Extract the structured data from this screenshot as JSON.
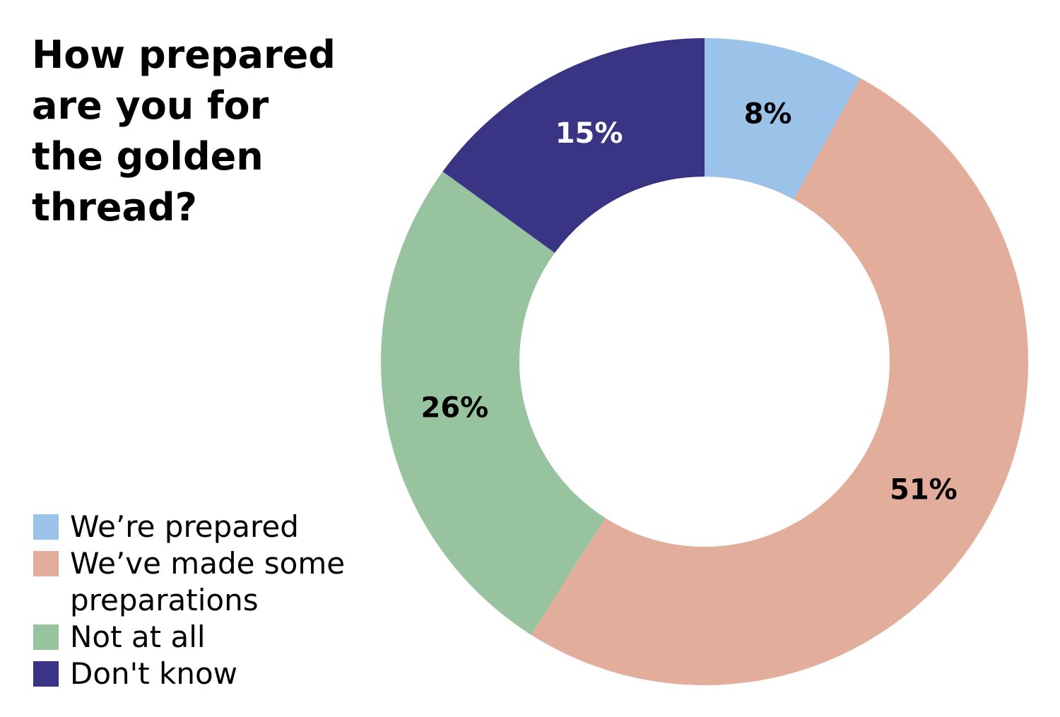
{
  "chart_data": {
    "type": "pie",
    "title": "How prepared are you for the golden thread?",
    "categories": [
      "We’re prepared",
      "We’ve made some preparations",
      "Not at all",
      "Don't know"
    ],
    "values": [
      8,
      51,
      26,
      15
    ],
    "value_labels": [
      "8%",
      "51%",
      "26%",
      "15%"
    ],
    "colors": [
      "#9bc2e9",
      "#e3ad9b",
      "#97c49f",
      "#3a3485"
    ],
    "legend": "bottom-left"
  }
}
